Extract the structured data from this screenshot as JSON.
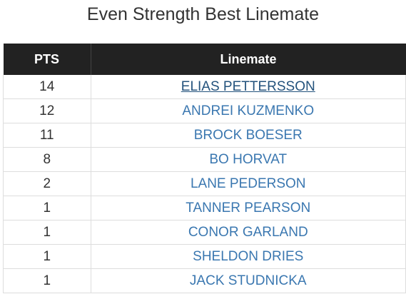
{
  "title": "Even Strength Best Linemate",
  "table": {
    "headers": [
      "PTS",
      "Linemate"
    ],
    "rows": [
      [
        14,
        "ELIAS PETTERSSON"
      ],
      [
        12,
        "ANDREI KUZMENKO"
      ],
      [
        11,
        "BROCK BOESER"
      ],
      [
        8,
        "BO HORVAT"
      ],
      [
        2,
        "LANE PEDERSON"
      ],
      [
        1,
        "TANNER PEARSON"
      ],
      [
        1,
        "CONOR GARLAND"
      ],
      [
        1,
        "SHELDON DRIES"
      ],
      [
        1,
        "JACK STUDNICKA"
      ]
    ]
  }
}
